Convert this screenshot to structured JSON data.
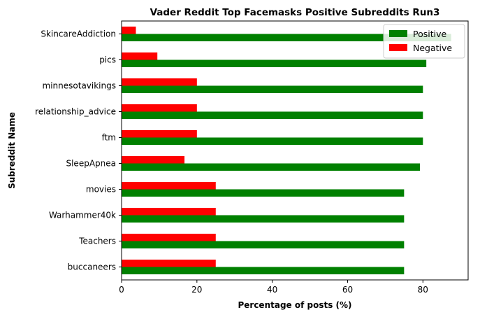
{
  "chart_data": {
    "type": "bar",
    "orientation": "horizontal",
    "title": "Vader Reddit Top Facemasks Positive Subreddits Run3",
    "xlabel": "Percentage of posts (%)",
    "ylabel": "Subreddit Name",
    "categories": [
      "buccaneers",
      "Teachers",
      "Warhammer40k",
      "movies",
      "SleepApnea",
      "ftm",
      "relationship_advice",
      "minnesotavikings",
      "pics",
      "SkincareAddiction"
    ],
    "series": [
      {
        "name": "Positive",
        "color": "#008000",
        "values": [
          75,
          75,
          75,
          75,
          79.2,
          80,
          80,
          80,
          80.9,
          87.5
        ]
      },
      {
        "name": "Negative",
        "color": "#ff0000",
        "values": [
          25,
          25,
          25,
          25,
          16.7,
          20,
          20,
          20,
          9.5,
          3.8
        ]
      }
    ],
    "xlim": [
      0,
      92
    ],
    "xticks": [
      "0",
      "20",
      "40",
      "60",
      "80"
    ],
    "grid": false,
    "legend_position": "top-right"
  }
}
